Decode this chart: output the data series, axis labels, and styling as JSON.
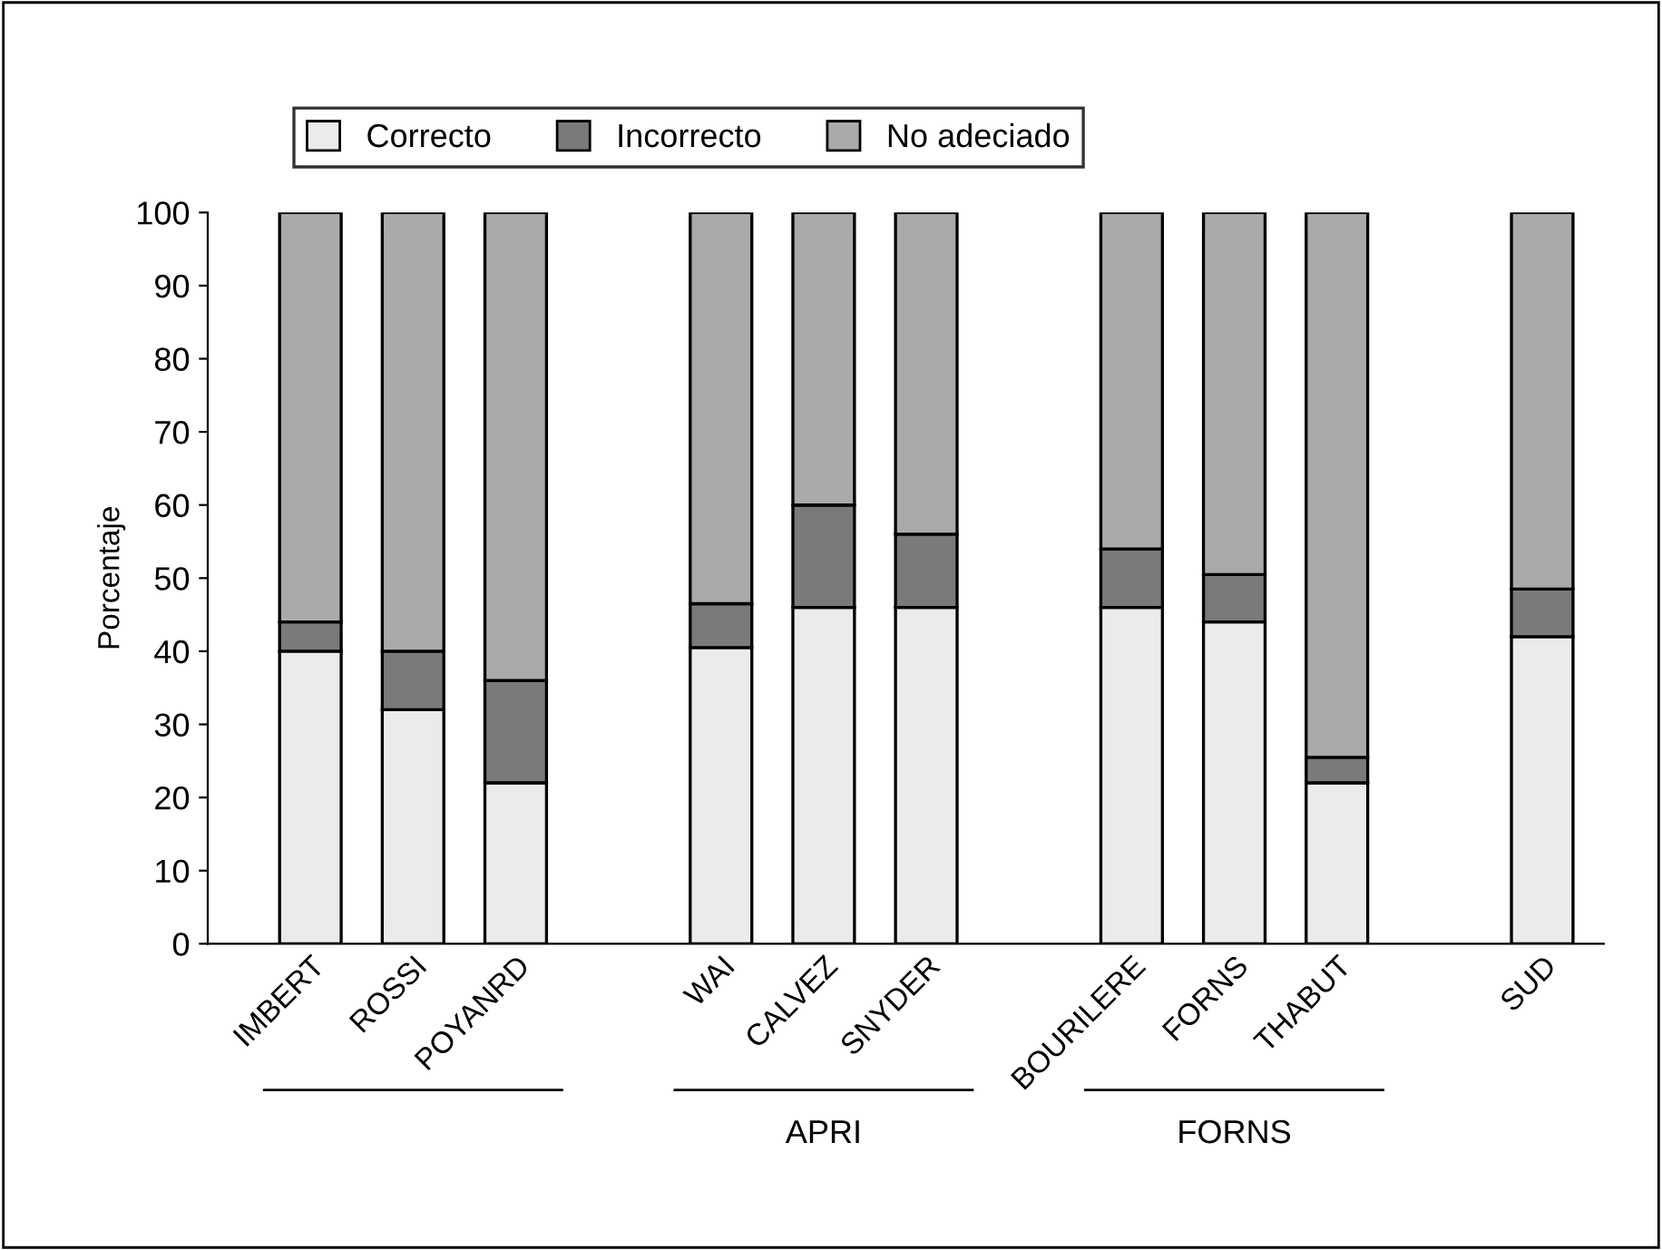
{
  "chart_data": {
    "type": "bar",
    "stacked": true,
    "ylabel": "Porcentaje",
    "categories": [
      "IMBERT",
      "ROSSI",
      "POYANRD",
      null,
      "WAI",
      "CALVEZ",
      "SNYDER",
      null,
      "BOURILERE",
      "FORNS",
      "THABUT",
      null,
      "SUD"
    ],
    "series": [
      {
        "name": "Correcto",
        "color": "#ebebea",
        "values": [
          40,
          32,
          22,
          null,
          40.5,
          46,
          46,
          null,
          46,
          44,
          22,
          null,
          42
        ]
      },
      {
        "name": "Incorrecto",
        "color": "#7a7a7a",
        "values": [
          4,
          8,
          14,
          null,
          6,
          14,
          10,
          null,
          8,
          6.5,
          3.5,
          null,
          6.5
        ]
      },
      {
        "name": "No adeciado",
        "color": "#aaaaaa",
        "values": [
          56,
          60,
          64,
          null,
          53.5,
          40,
          44,
          null,
          46,
          49.5,
          74.5,
          null,
          51.5
        ]
      }
    ],
    "ylim": [
      0,
      100
    ],
    "yticks": [
      0,
      10,
      20,
      30,
      40,
      50,
      60,
      70,
      80,
      90,
      100
    ],
    "legend": "top",
    "grid": false,
    "annotations": [
      "APRI",
      "FORNS"
    ]
  }
}
